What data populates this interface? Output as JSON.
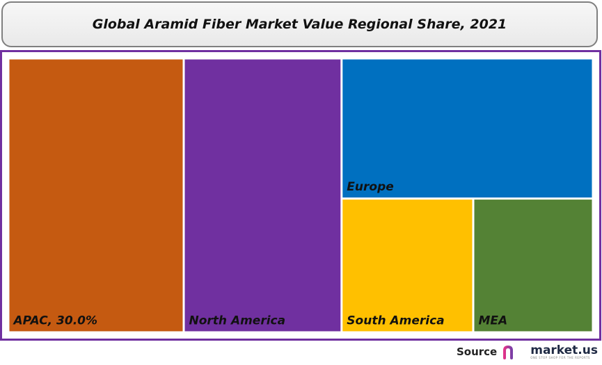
{
  "title": "Global Aramid Fiber Market Value Regional Share, 2021",
  "chart_data": {
    "type": "treemap",
    "title": "Global Aramid Fiber Market Value Regional Share, 2021",
    "regions": [
      {
        "name": "APAC",
        "label": "APAC, 30.0%",
        "value": 30.0,
        "color": "#c55a11"
      },
      {
        "name": "North America",
        "label": "North America",
        "value": 27.0,
        "color": "#7030a0"
      },
      {
        "name": "Europe",
        "label": "Europe",
        "value": 22.0,
        "color": "#0070c0"
      },
      {
        "name": "South America",
        "label": "South America",
        "value": 11.0,
        "color": "#ffc000"
      },
      {
        "name": "MEA",
        "label": "MEA",
        "value": 10.0,
        "color": "#548235"
      }
    ]
  },
  "source": {
    "label": "Source",
    "brand": "market.us",
    "tagline": "ONE STOP SHOP FOR THE REPORTS"
  },
  "colors": {
    "frame": "#7030a0",
    "title_border": "#7f7f7f"
  }
}
